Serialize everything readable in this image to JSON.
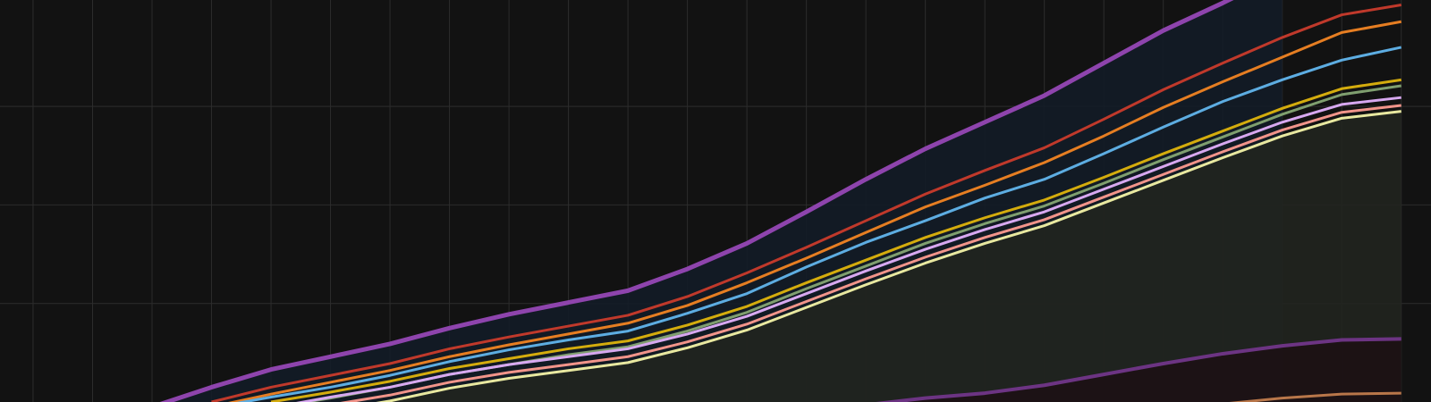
{
  "chart_data": {
    "type": "line",
    "background": "#121212",
    "grid": true,
    "grid_color": "#2c2c2c",
    "x": [
      0,
      1,
      2,
      3,
      4,
      5,
      6,
      7,
      8,
      9,
      10,
      11,
      12,
      13,
      14,
      15,
      16,
      17,
      18,
      19,
      20,
      21,
      22,
      23
    ],
    "xlim": [
      -0.556,
      23.5
    ],
    "ylim": [
      0,
      4.08
    ],
    "xticks": [
      0,
      1,
      2,
      3,
      4,
      5,
      6,
      7,
      8,
      9,
      10,
      11,
      12,
      13,
      14,
      15,
      16,
      17,
      18,
      19,
      20,
      21,
      22,
      23
    ],
    "yticks": [
      1,
      2,
      3
    ],
    "series": [
      {
        "color": "#8e44ad",
        "fill": "#131c27",
        "width": 5,
        "values": [
          null,
          null,
          -0.05,
          0.15,
          0.33,
          0.46,
          0.59,
          0.75,
          0.89,
          1.01,
          1.13,
          1.35,
          1.61,
          1.93,
          2.26,
          2.57,
          2.84,
          3.11,
          3.44,
          3.77,
          4.05,
          4.35,
          null,
          null
        ]
      },
      {
        "color": "#c0392b",
        "width": 3,
        "values": [
          null,
          null,
          null,
          0,
          0.15,
          0.27,
          0.39,
          0.54,
          0.66,
          0.77,
          0.88,
          1.07,
          1.31,
          1.57,
          1.84,
          2.11,
          2.35,
          2.58,
          2.87,
          3.17,
          3.44,
          3.7,
          3.93,
          4.03
        ]
      },
      {
        "color": "#e67e22",
        "width": 3,
        "values": [
          null,
          null,
          null,
          -0.05,
          0.08,
          0.2,
          0.32,
          0.46,
          0.58,
          0.69,
          0.8,
          0.98,
          1.21,
          1.46,
          1.72,
          1.98,
          2.2,
          2.43,
          2.7,
          2.99,
          3.25,
          3.5,
          3.75,
          3.86
        ]
      },
      {
        "color": "#5dade2",
        "width": 3,
        "values": [
          null,
          null,
          null,
          -0.06,
          0.05,
          0.15,
          0.27,
          0.41,
          0.53,
          0.63,
          0.72,
          0.9,
          1.1,
          1.37,
          1.62,
          1.84,
          2.07,
          2.26,
          2.52,
          2.79,
          3.05,
          3.27,
          3.47,
          3.6
        ]
      },
      {
        "color": "#d4ac0d",
        "width": 3,
        "values": [
          null,
          null,
          null,
          null,
          0,
          0.1,
          0.21,
          0.34,
          0.44,
          0.54,
          0.62,
          0.78,
          0.97,
          1.21,
          1.44,
          1.67,
          1.87,
          2.05,
          2.28,
          2.52,
          2.75,
          2.98,
          3.18,
          3.27
        ]
      },
      {
        "color": "#7f9f6f",
        "width": 3,
        "values": [
          null,
          null,
          null,
          null,
          -0.06,
          0.04,
          0.15,
          0.28,
          0.38,
          0.48,
          0.56,
          0.72,
          0.91,
          1.15,
          1.38,
          1.61,
          1.81,
          1.99,
          2.22,
          2.46,
          2.69,
          2.92,
          3.12,
          3.21
        ]
      },
      {
        "color": "#d7a8f0",
        "width": 3,
        "values": [
          null,
          null,
          null,
          null,
          -0.06,
          0.05,
          0.15,
          0.28,
          0.38,
          0.46,
          0.54,
          0.69,
          0.87,
          1.1,
          1.33,
          1.55,
          1.75,
          1.93,
          2.16,
          2.39,
          2.62,
          2.84,
          3.02,
          3.09
        ]
      },
      {
        "color": "#f1948a",
        "width": 3,
        "values": [
          null,
          null,
          null,
          null,
          -0.14,
          -0.03,
          0.07,
          0.2,
          0.3,
          0.38,
          0.46,
          0.61,
          0.79,
          1.02,
          1.25,
          1.47,
          1.67,
          1.85,
          2.08,
          2.31,
          2.54,
          2.76,
          2.94,
          3.01
        ]
      },
      {
        "color": "#e8e8a0",
        "fill": "#21251f",
        "width": 3,
        "values": [
          null,
          null,
          null,
          null,
          -0.2,
          -0.09,
          0.01,
          0.14,
          0.24,
          0.32,
          0.4,
          0.55,
          0.73,
          0.96,
          1.19,
          1.41,
          1.61,
          1.79,
          2.02,
          2.25,
          2.48,
          2.7,
          2.88,
          2.95
        ]
      },
      {
        "color": "#6c3483",
        "fill": "#1c1114",
        "width": 4,
        "values": [
          null,
          null,
          null,
          null,
          null,
          null,
          null,
          null,
          null,
          null,
          null,
          null,
          null,
          null,
          -0.03,
          0.04,
          0.09,
          0.17,
          0.28,
          0.39,
          0.49,
          0.57,
          0.63,
          0.64
        ]
      },
      {
        "color": "#b9774a",
        "width": 3,
        "values": [
          null,
          null,
          null,
          null,
          null,
          null,
          null,
          null,
          null,
          null,
          null,
          null,
          null,
          null,
          null,
          null,
          null,
          null,
          null,
          -0.1,
          -0.02,
          0.04,
          0.08,
          0.09
        ]
      }
    ]
  }
}
